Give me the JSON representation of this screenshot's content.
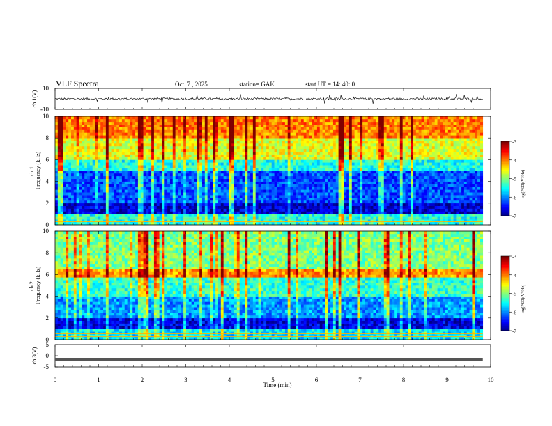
{
  "header": {
    "title": "VLF  Spectra",
    "date": "Oct. 7  , 2025",
    "station": "station= GAK",
    "start_ut": "start  UT  =    14: 40: 0"
  },
  "chart_data": [
    {
      "id": "ch1-waveform",
      "type": "line",
      "ylabel": "ch.1(V)",
      "ylim": [
        -10,
        10
      ],
      "yticks": [
        10,
        -10
      ],
      "baseline_v": 0,
      "noise_amplitude_v": 1,
      "spike_max_v": 4
    },
    {
      "id": "ch1-spectrogram",
      "type": "heatmap",
      "ylabel": "ch.1\nFrequency  (kHz)",
      "ylim": [
        0,
        10
      ],
      "yticks": [
        0,
        2,
        4,
        6,
        8,
        10
      ],
      "colorbar": {
        "label": "log(PSD)(V²/Hz)",
        "ticks": [
          -3,
          -4,
          -5,
          -6,
          -7
        ],
        "range": [
          -7,
          -3
        ]
      },
      "psd_bands": [
        {
          "f_kHz": [
            0,
            1
          ],
          "logPSD": -5.4
        },
        {
          "f_kHz": [
            1,
            2
          ],
          "logPSD": -6.7
        },
        {
          "f_kHz": [
            2,
            5
          ],
          "logPSD": -6.2
        },
        {
          "f_kHz": [
            5,
            6
          ],
          "logPSD": -5.4
        },
        {
          "f_kHz": [
            6,
            8
          ],
          "logPSD": -4.6
        },
        {
          "f_kHz": [
            8,
            10
          ],
          "logPSD": -4.0
        }
      ],
      "x_data_end_min": 9.82
    },
    {
      "id": "ch2-spectrogram",
      "type": "heatmap",
      "ylabel": "ch.2\nFrequency  (kHz)",
      "ylim": [
        0,
        10
      ],
      "yticks": [
        0,
        2,
        4,
        6,
        8,
        10
      ],
      "colorbar": {
        "label": "log(PSD)(V²/Hz)",
        "ticks": [
          -3,
          -4,
          -5,
          -6,
          -7
        ],
        "range": [
          -7,
          -3
        ]
      },
      "psd_bands": [
        {
          "f_kHz": [
            0,
            1
          ],
          "logPSD": -5.6
        },
        {
          "f_kHz": [
            1,
            2
          ],
          "logPSD": -6.6
        },
        {
          "f_kHz": [
            2,
            4
          ],
          "logPSD": -5.9
        },
        {
          "f_kHz": [
            4,
            5.8
          ],
          "logPSD": -5.3
        },
        {
          "f_kHz": [
            5.8,
            6.5
          ],
          "logPSD": -4.1
        },
        {
          "f_kHz": [
            6.5,
            10
          ],
          "logPSD": -5.0
        }
      ],
      "x_data_end_min": 9.82
    },
    {
      "id": "ch3-waveform",
      "type": "line",
      "ylabel": "ch.3(V)",
      "ylim": [
        -5,
        5
      ],
      "yticks": [
        5,
        0,
        -5
      ],
      "baseline_v": -1.8,
      "noise_amplitude_v": 0.2
    }
  ],
  "x_axis": {
    "label": "Time  (min)",
    "range": [
      0,
      10
    ],
    "ticks": [
      0,
      1,
      2,
      3,
      4,
      5,
      6,
      7,
      8,
      9,
      10
    ]
  }
}
